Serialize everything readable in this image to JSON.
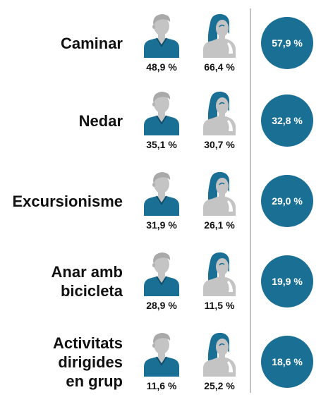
{
  "chart_data": {
    "type": "pictogram",
    "categories": [
      "Caminar",
      "Nedar",
      "Excursionisme",
      "Anar amb\nbicicleta",
      "Activitats\ndirigides\nen grup"
    ],
    "series": [
      {
        "values": [
          48.9,
          35.1,
          31.9,
          28.9,
          11.6
        ]
      },
      {
        "values": [
          66.4,
          30.7,
          26.1,
          11.5,
          25.2
        ]
      },
      {
        "values": [
          57.9,
          32.8,
          29.0,
          19.9,
          18.6
        ]
      }
    ]
  },
  "rows": [
    {
      "label": "Caminar",
      "man": "48,9 %",
      "woman": "66,4 %",
      "total": "57,9 %"
    },
    {
      "label": "Nedar",
      "man": "35,1 %",
      "woman": "30,7 %",
      "total": "32,8 %"
    },
    {
      "label": "Excursionisme",
      "man": "31,9 %",
      "woman": "26,1 %",
      "total": "29,0 %"
    },
    {
      "label": "Anar amb\nbicicleta",
      "man": "28,9 %",
      "woman": "11,5 %",
      "total": "19,9 %"
    },
    {
      "label": "Activitats\ndirigides\nen grup",
      "man": "11,6 %",
      "woman": "25,2 %",
      "total": "18,6 %"
    }
  ],
  "colors": {
    "accent": "#1a6f95",
    "figure_gray": "#c4c4c4",
    "divider": "#c4c4c4",
    "text": "#111111"
  },
  "icons": {
    "man": "man-icon",
    "woman": "woman-icon"
  }
}
